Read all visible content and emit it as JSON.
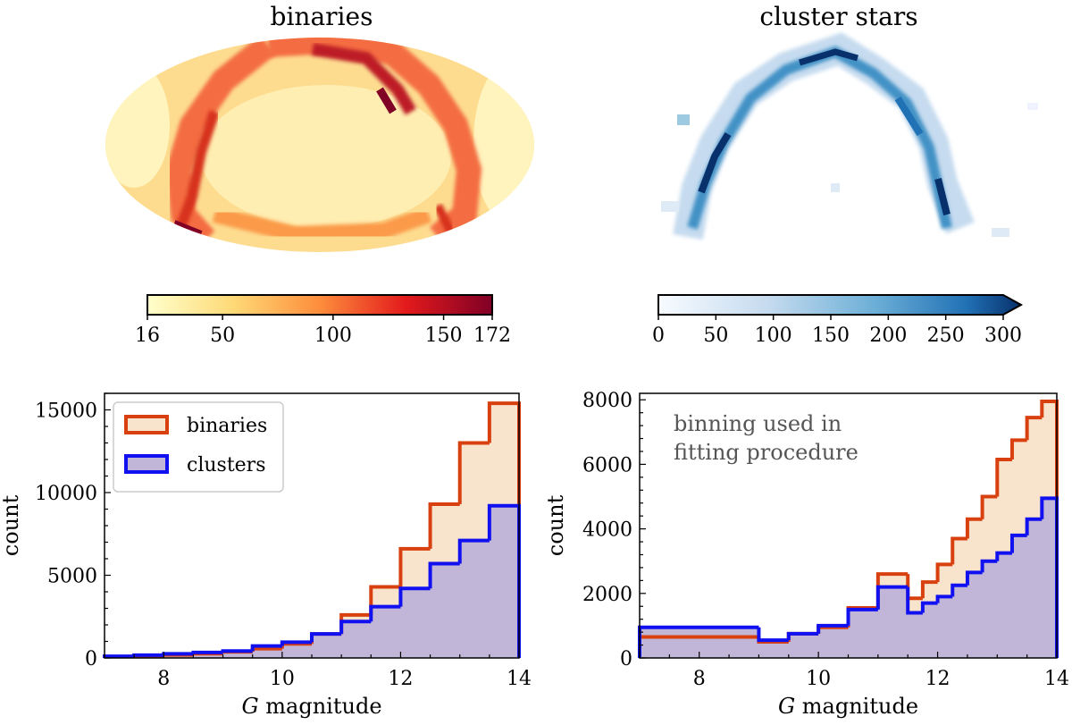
{
  "colors": {
    "binaries_line": "#d9400f",
    "binaries_fill": "#f8e4cc",
    "clusters_line": "#1010f0",
    "clusters_fill": "#c2b6d8",
    "annotation": "#555555",
    "ylord_low": "#ffffcc",
    "ylord_mid": "#fd8d3c",
    "ylord_high": "#800026",
    "blues_low": "#f7fbff",
    "blues_mid": "#6baed6",
    "blues_high": "#08306b"
  },
  "maps": {
    "binaries": {
      "title": "binaries",
      "colorbar": {
        "min": 16,
        "max": 172,
        "ticks": [
          "16",
          "50",
          "100",
          "150",
          "172"
        ],
        "tick_values": [
          16,
          50,
          100,
          150,
          172
        ]
      }
    },
    "clusters": {
      "title": "cluster stars",
      "colorbar": {
        "min": 0,
        "max": 300,
        "extend": "max",
        "ticks": [
          "0",
          "50",
          "100",
          "150",
          "200",
          "250",
          "300"
        ],
        "tick_values": [
          0,
          50,
          100,
          150,
          200,
          250,
          300
        ]
      }
    }
  },
  "chart_data": [
    {
      "type": "step-histogram",
      "title": "",
      "xlabel_italic": "G",
      "xlabel_rest": " magnitude",
      "ylabel": "count",
      "xlim": [
        7,
        14
      ],
      "ylim": [
        0,
        16000
      ],
      "xticks": [
        8,
        10,
        12,
        14
      ],
      "yticks": [
        0,
        5000,
        10000,
        15000
      ],
      "legend": {
        "position": "top-left",
        "entries": [
          "binaries",
          "clusters"
        ]
      },
      "edges": [
        7,
        7.5,
        8,
        8.5,
        9,
        9.5,
        10,
        10.5,
        11,
        11.5,
        12,
        12.5,
        13,
        13.5,
        14
      ],
      "series": [
        {
          "name": "binaries",
          "values": [
            80,
            120,
            180,
            260,
            370,
            560,
            850,
            1450,
            2600,
            4300,
            6600,
            9300,
            13000,
            15400
          ]
        },
        {
          "name": "clusters",
          "values": [
            100,
            170,
            250,
            330,
            420,
            720,
            950,
            1450,
            2200,
            3100,
            4200,
            5700,
            7100,
            9200
          ]
        }
      ]
    },
    {
      "type": "step-histogram",
      "title": "",
      "xlabel_italic": "G",
      "xlabel_rest": " magnitude",
      "ylabel": "count",
      "annotation": [
        "binning used in",
        "fitting procedure"
      ],
      "xlim": [
        7,
        14
      ],
      "ylim": [
        0,
        8200
      ],
      "xticks": [
        8,
        10,
        12,
        14
      ],
      "yticks": [
        0,
        2000,
        4000,
        6000,
        8000
      ],
      "edges": [
        7,
        9,
        9.5,
        10,
        10.5,
        11,
        11.5,
        11.75,
        12,
        12.25,
        12.5,
        12.75,
        13,
        13.25,
        13.5,
        13.75,
        14
      ],
      "series": [
        {
          "name": "binaries",
          "values": [
            650,
            500,
            750,
            950,
            1550,
            2600,
            1850,
            2350,
            2900,
            3700,
            4300,
            5000,
            6150,
            6750,
            7450,
            7950
          ]
        },
        {
          "name": "clusters",
          "values": [
            950,
            550,
            750,
            1000,
            1500,
            2200,
            1400,
            1700,
            1900,
            2250,
            2650,
            3000,
            3250,
            3800,
            4300,
            4950
          ]
        }
      ]
    }
  ]
}
